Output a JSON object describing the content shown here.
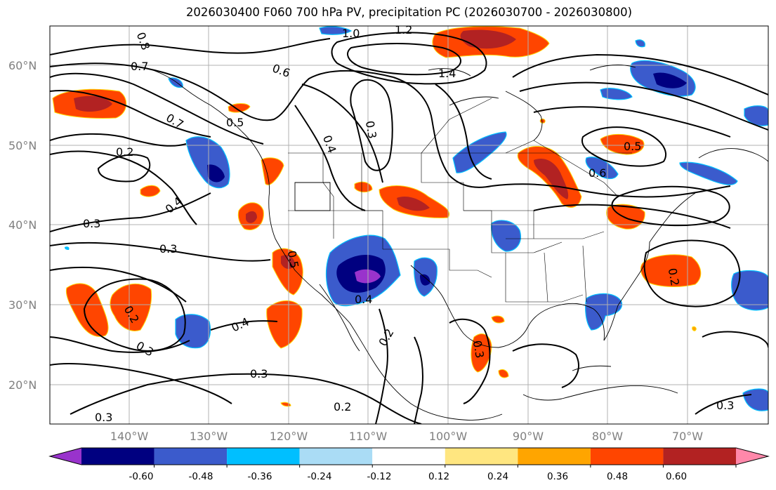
{
  "title": "2026030400 F060 700 hPa PV, precipitation PC (2026030700 - 2026030800)",
  "latitude_labels": [
    "60°N",
    "50°N",
    "40°N",
    "30°N",
    "20°N"
  ],
  "longitude_labels": [
    "140°W",
    "130°W",
    "120°W",
    "110°W",
    "100°W",
    "90°W",
    "80°W",
    "70°W"
  ],
  "contour_labels": [
    "1.0",
    "0.8",
    "0.7",
    "0.6",
    "0.5",
    "0.4",
    "0.3",
    "0.2",
    "1.2",
    "1.4",
    "0.4",
    "0.3",
    "0.2",
    "0.3",
    "0.5",
    "0.7",
    "0.6",
    "0.5",
    "0.3",
    "0.4",
    "0.2",
    "0.3",
    "0.2",
    "0.3",
    "0.4",
    "0.2",
    "0.3",
    "0.3"
  ],
  "colorbar": {
    "tick_labels": [
      "-0.60",
      "-0.48",
      "-0.36",
      "-0.24",
      "-0.12",
      "0.12",
      "0.24",
      "0.36",
      "0.48",
      "0.60"
    ],
    "colors": [
      "#9933cc",
      "#000080",
      "#3b5bcc",
      "#00bfff",
      "#aadcf5",
      "#ffffff",
      "#ffe680",
      "#ffa500",
      "#ff4500",
      "#b22222",
      "#ff88aa"
    ]
  }
}
